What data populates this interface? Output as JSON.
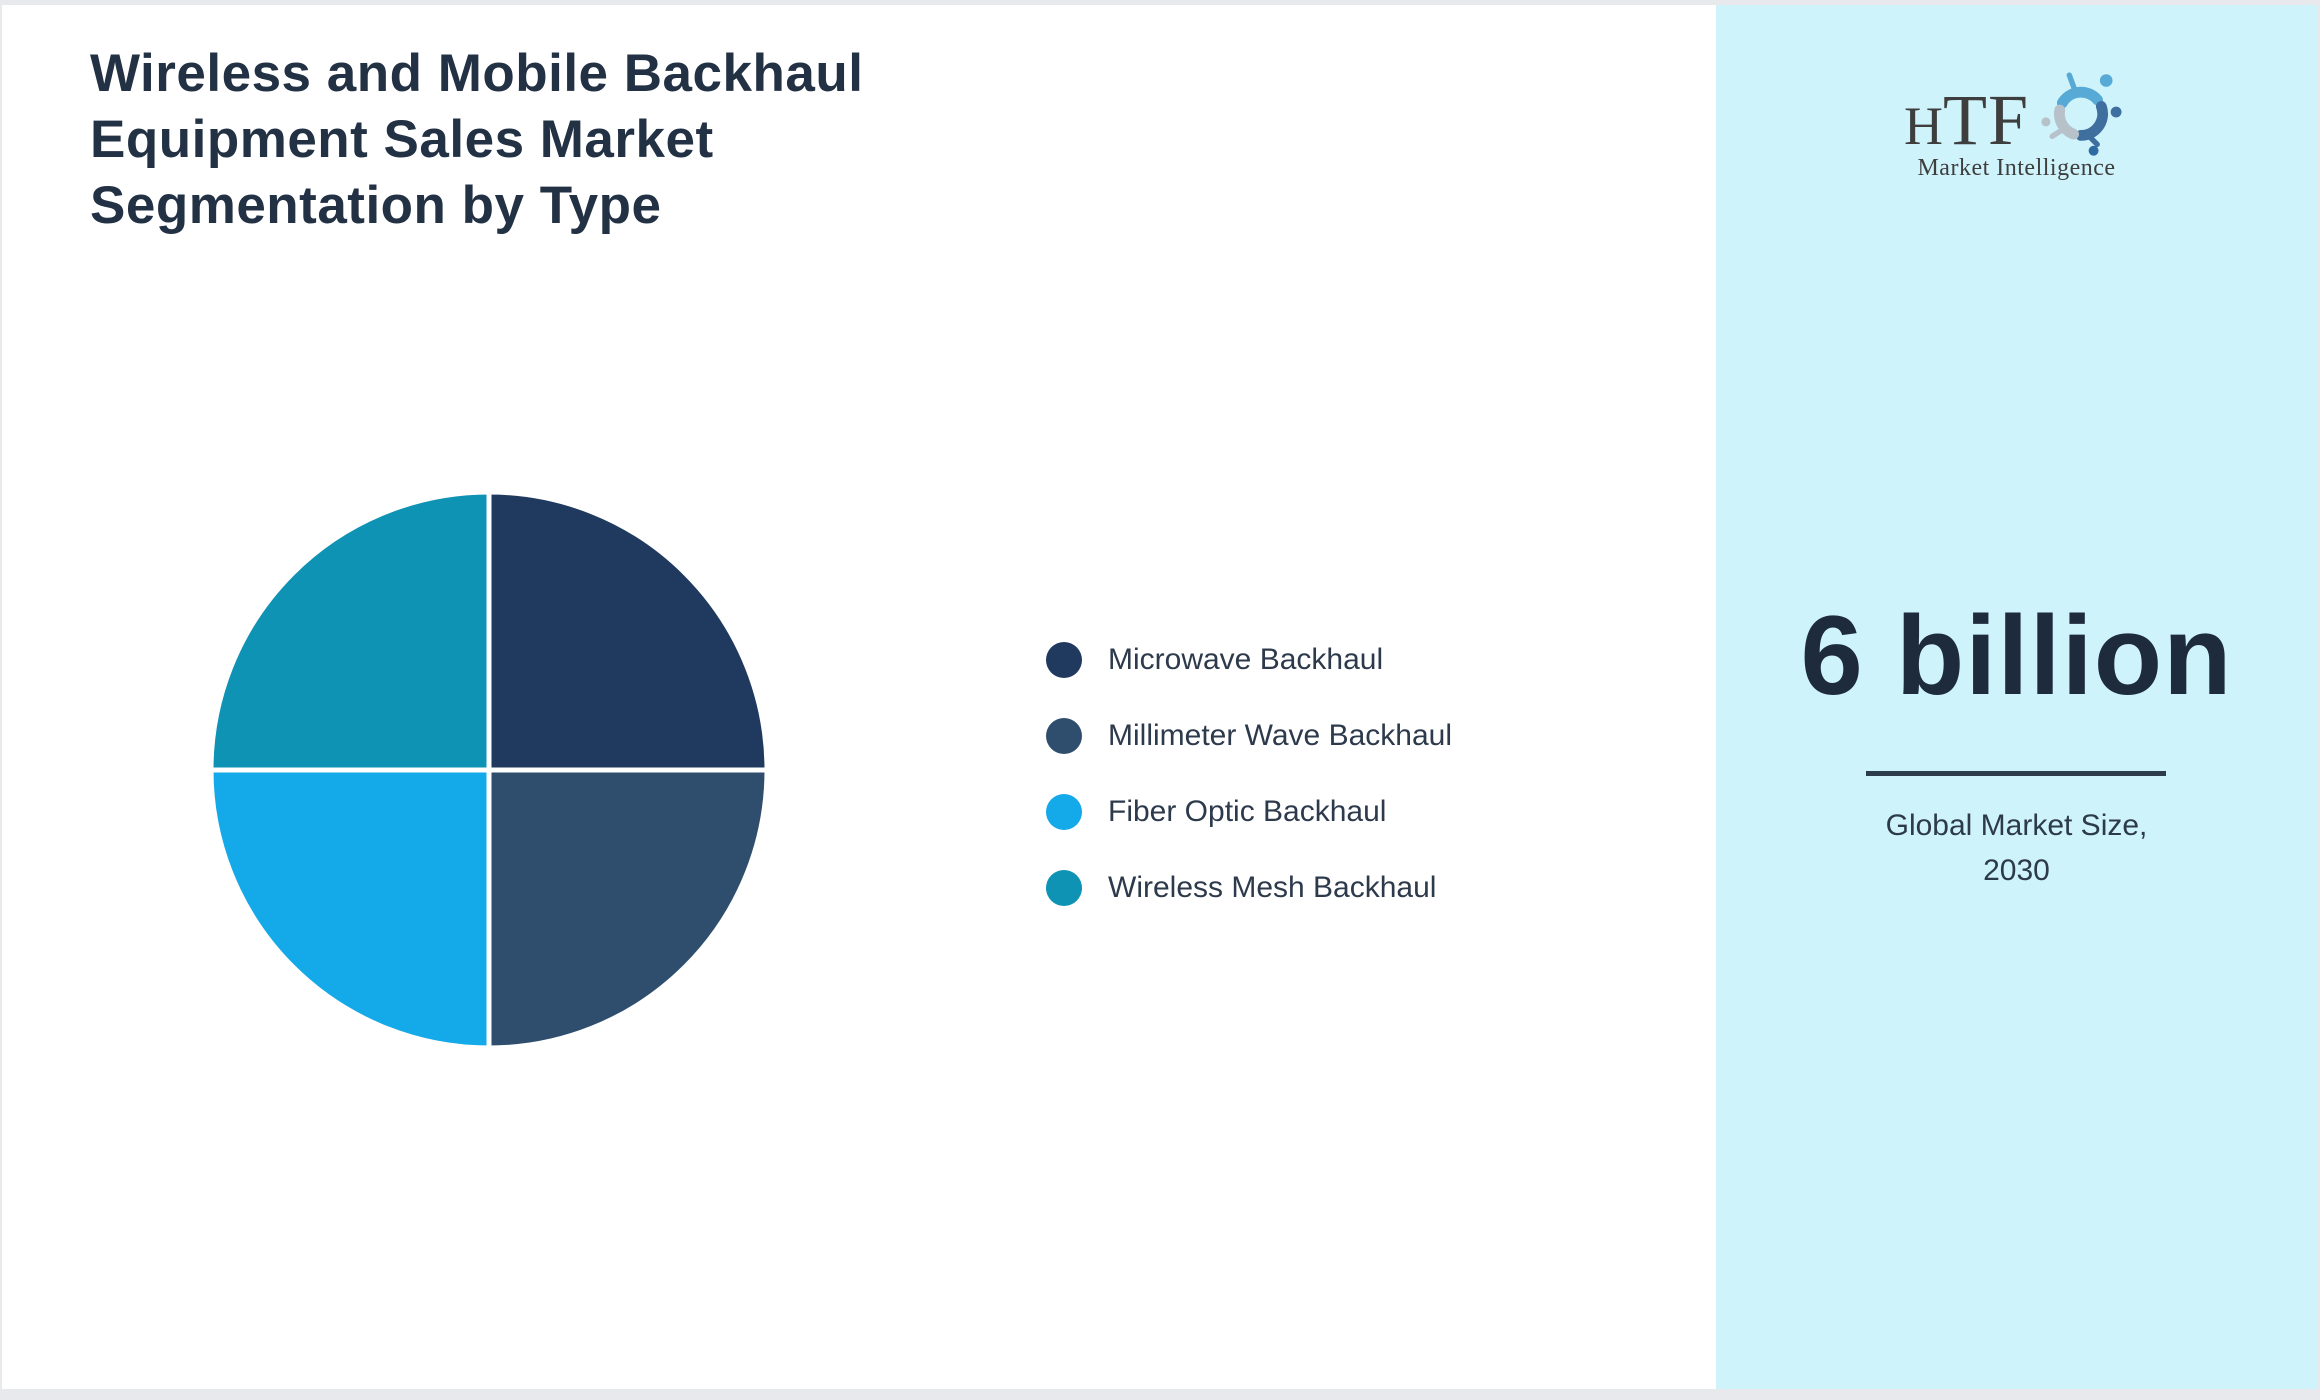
{
  "page": {
    "title": "Wireless and Mobile Backhaul\nEquipment Sales Market\nSegmentation by Type"
  },
  "branding": {
    "logo_text_h": "H",
    "logo_text_tf": "TF",
    "logo_subtitle": "Market Intelligence"
  },
  "sidebar": {
    "stat_value": "6 billion",
    "stat_caption": "Global Market Size, 2030",
    "background_color": "#cff3fb"
  },
  "chart_data": {
    "type": "pie",
    "title": "Wireless and Mobile Backhaul Equipment Sales Market Segmentation by Type",
    "labels": [
      "Microwave Backhaul",
      "Millimeter Wave Backhaul",
      "Fiber Optic Backhaul",
      "Wireless Mesh Backhaul"
    ],
    "values": [
      25,
      25,
      25,
      25
    ],
    "colors": [
      "#1f3a5e",
      "#2f4e6d",
      "#14a9e8",
      "#0e93b5"
    ],
    "start_angle_deg": -90,
    "direction": "clockwise",
    "legend_position": "right",
    "donut": false,
    "slice_border_color": "#ffffff"
  },
  "colors": {
    "title_text": "#233144",
    "legend_text": "#2d3a4c",
    "stat_text": "#1d2b3c",
    "frame_border": "#e7e9ed",
    "main_background": "#ffffff",
    "logo_lightblue": "#57a9d6",
    "logo_steelblue": "#3e6f9e",
    "logo_gray": "#b7c1ca"
  }
}
